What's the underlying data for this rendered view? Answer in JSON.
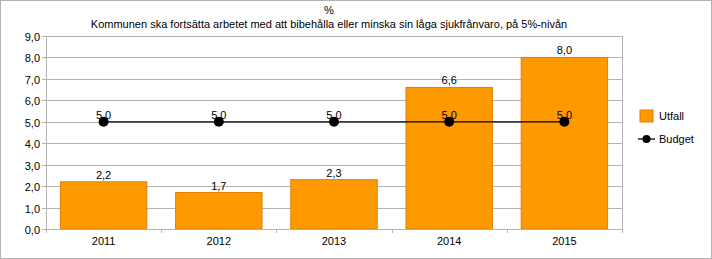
{
  "chart_data": {
    "type": "bar",
    "title": "%",
    "subtitle": "Kommunen ska fortsätta arbetet med att bibehålla eller minska sin låga sjukfrånvaro, på 5%-nivån",
    "categories": [
      "2011",
      "2012",
      "2013",
      "2014",
      "2015"
    ],
    "series": [
      {
        "name": "Utfall",
        "type": "bar",
        "color": "#ff9900",
        "values": [
          2.2,
          1.7,
          2.3,
          6.6,
          8.0
        ],
        "value_labels": [
          "2,2",
          "1,7",
          "2,3",
          "6,6",
          "8,0"
        ]
      },
      {
        "name": "Budget",
        "type": "line",
        "color": "#000000",
        "marker": "circle",
        "values": [
          5,
          5,
          5,
          5,
          5
        ],
        "value_labels": [
          "5,0",
          "5,0",
          "5,0",
          "5,0",
          "5,0"
        ]
      }
    ],
    "ylim": [
      0,
      9
    ],
    "yticks": [
      {
        "value": 0,
        "label": "0,0"
      },
      {
        "value": 1,
        "label": "1,0"
      },
      {
        "value": 2,
        "label": "2,0"
      },
      {
        "value": 3,
        "label": "3,0"
      },
      {
        "value": 4,
        "label": "4,0"
      },
      {
        "value": 5,
        "label": "5,0"
      },
      {
        "value": 6,
        "label": "6,0"
      },
      {
        "value": 7,
        "label": "7,0"
      },
      {
        "value": 8,
        "label": "8,0"
      },
      {
        "value": 9,
        "label": "9,0"
      }
    ],
    "grid": true,
    "legend": "right",
    "data_labels": true
  }
}
